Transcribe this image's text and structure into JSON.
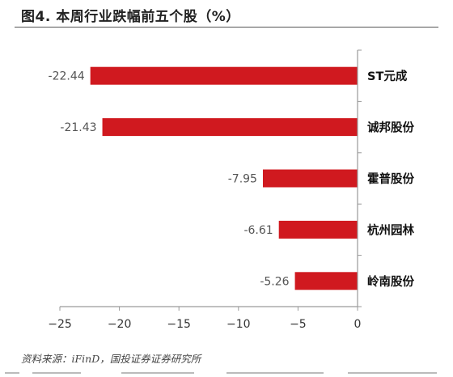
{
  "header": {
    "title": "图4. 本周行业跌幅前五个股（%）"
  },
  "footer": {
    "source": "资料来源：iFinD，国投证券证券研究所"
  },
  "colors": {
    "bar": "#d0191f",
    "axis": "#9a9a9a"
  },
  "chart_data": {
    "type": "bar",
    "orientation": "horizontal",
    "categories": [
      "ST元成",
      "诚邦股份",
      "霍普股份",
      "杭州园林",
      "岭南股份"
    ],
    "values": [
      -22.44,
      -21.43,
      -7.95,
      -6.61,
      -5.26
    ],
    "value_labels": [
      "-22.44",
      "-21.43",
      "-7.95",
      "-6.61",
      "-5.26"
    ],
    "xlim": [
      -25,
      0
    ],
    "xticks": [
      -25,
      -20,
      -15,
      -10,
      -5,
      0
    ],
    "xtick_labels": [
      "−25",
      "−20",
      "−15",
      "−10",
      "−5",
      "0"
    ],
    "grid": false,
    "legend": false
  }
}
